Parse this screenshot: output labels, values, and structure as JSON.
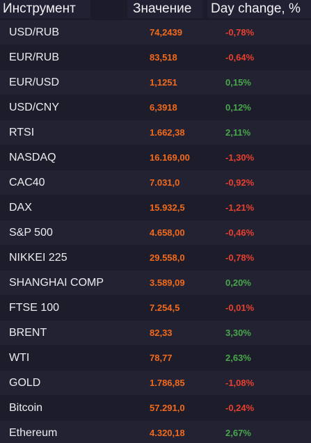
{
  "header": {
    "instrument": "Инструмент",
    "value": "Значение",
    "change": "Day change, %"
  },
  "colors": {
    "background": "#1c1b29",
    "value": "#f26a1b",
    "negative": "#e8402e",
    "positive": "#47a84a"
  },
  "rows": [
    {
      "name": "USD/RUB",
      "value": "74,2439",
      "change": "-0,78%",
      "direction": "neg"
    },
    {
      "name": "EUR/RUB",
      "value": "83,518",
      "change": "-0,64%",
      "direction": "neg"
    },
    {
      "name": "EUR/USD",
      "value": "1,1251",
      "change": "0,15%",
      "direction": "pos"
    },
    {
      "name": "USD/CNY",
      "value": "6,3918",
      "change": "0,12%",
      "direction": "pos"
    },
    {
      "name": "RTSI",
      "value": "1.662,38",
      "change": "2,11%",
      "direction": "pos"
    },
    {
      "name": "NASDAQ",
      "value": "16.169,00",
      "change": "-1,30%",
      "direction": "neg"
    },
    {
      "name": "CAC40",
      "value": "7.031,0",
      "change": "-0,92%",
      "direction": "neg"
    },
    {
      "name": "DAX",
      "value": "15.932,5",
      "change": "-1,21%",
      "direction": "neg"
    },
    {
      "name": "S&P 500",
      "value": "4.658,00",
      "change": "-0,46%",
      "direction": "neg"
    },
    {
      "name": "NIKKEI 225",
      "value": "29.558,0",
      "change": "-0,78%",
      "direction": "neg"
    },
    {
      "name": "SHANGHAI COMP",
      "value": "3.589,09",
      "change": "0,20%",
      "direction": "pos"
    },
    {
      "name": "FTSE 100",
      "value": "7.254,5",
      "change": "-0,01%",
      "direction": "neg"
    },
    {
      "name": "BRENT",
      "value": "82,33",
      "change": "3,30%",
      "direction": "pos"
    },
    {
      "name": "WTI",
      "value": "78,77",
      "change": "2,63%",
      "direction": "pos"
    },
    {
      "name": "GOLD",
      "value": "1.786,85",
      "change": "-1,08%",
      "direction": "neg"
    },
    {
      "name": "Bitcoin",
      "value": "57.291,0",
      "change": "-0,24%",
      "direction": "neg"
    },
    {
      "name": "Ethereum",
      "value": "4.320,18",
      "change": "2,67%",
      "direction": "pos"
    }
  ]
}
